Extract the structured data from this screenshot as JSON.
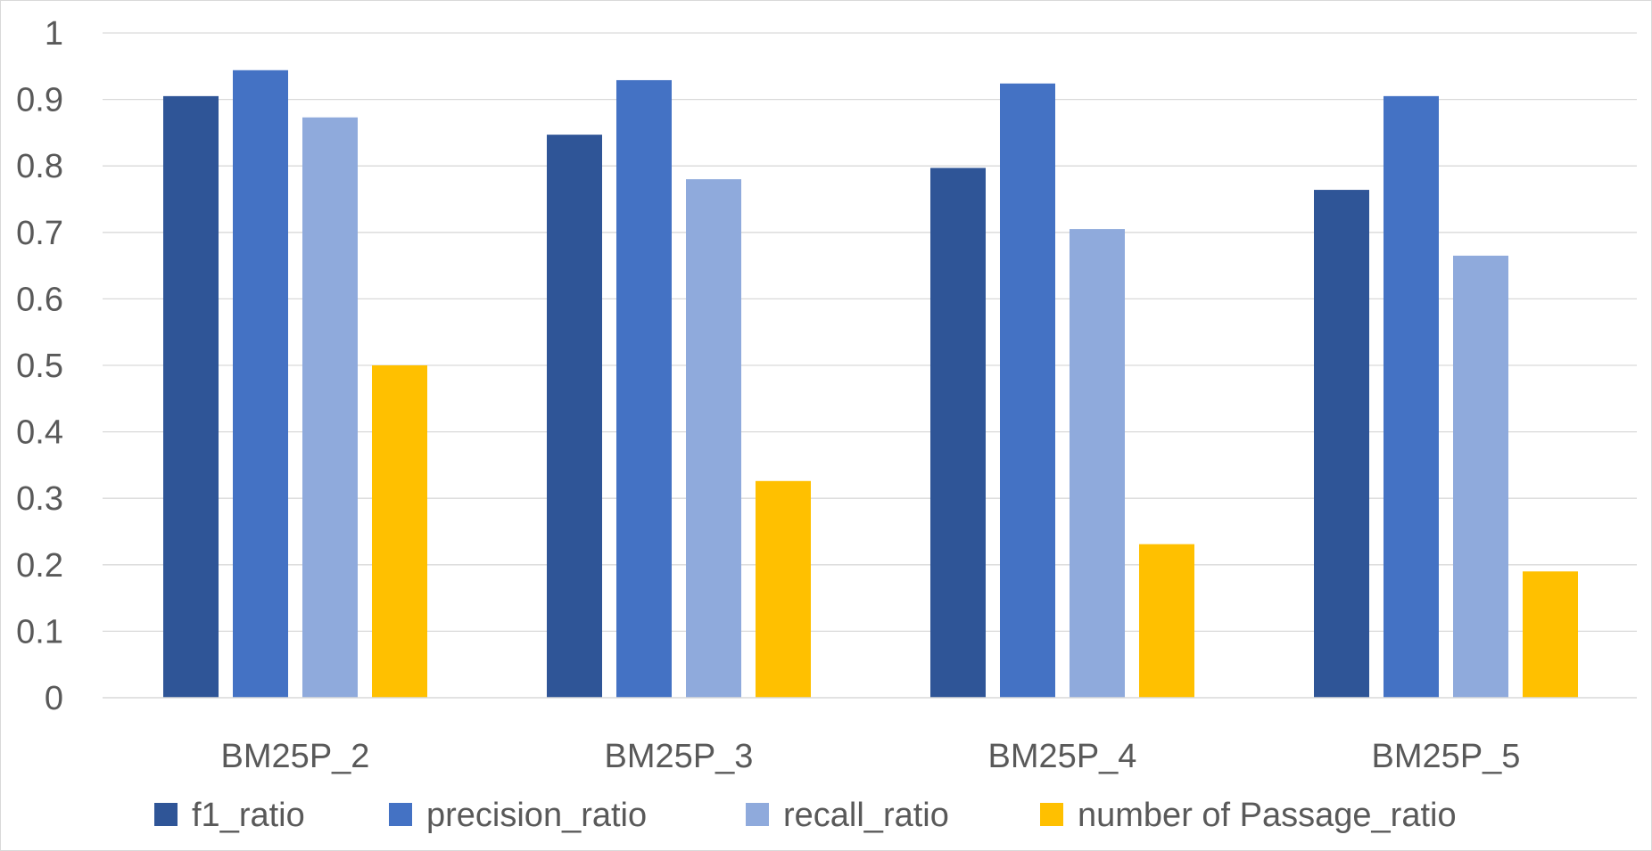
{
  "chart_data": {
    "type": "bar",
    "title": "",
    "xlabel": "",
    "ylabel": "",
    "categories": [
      "BM25P_2",
      "BM25P_3",
      "BM25P_4",
      "BM25P_5"
    ],
    "ylim": [
      0,
      1
    ],
    "yticks": [
      0,
      0.1,
      0.2,
      0.3,
      0.4,
      0.5,
      0.6,
      0.7,
      0.8,
      0.9,
      1
    ],
    "ytick_labels": [
      "0",
      "0.1",
      "0.2",
      "0.3",
      "0.4",
      "0.5",
      "0.6",
      "0.7",
      "0.8",
      "0.9",
      "1"
    ],
    "grid": true,
    "legend_position": "bottom",
    "series": [
      {
        "name": "f1_ratio",
        "color": "#2f5597",
        "values": [
          0.905,
          0.847,
          0.797,
          0.764
        ]
      },
      {
        "name": "precision_ratio",
        "color": "#4472c4",
        "values": [
          0.944,
          0.929,
          0.924,
          0.905
        ]
      },
      {
        "name": "recall_ratio",
        "color": "#8faadc",
        "values": [
          0.873,
          0.78,
          0.705,
          0.665
        ]
      },
      {
        "name": "number of Passage_ratio",
        "color": "#ffc000",
        "values": [
          0.5,
          0.326,
          0.231,
          0.19
        ]
      }
    ]
  }
}
